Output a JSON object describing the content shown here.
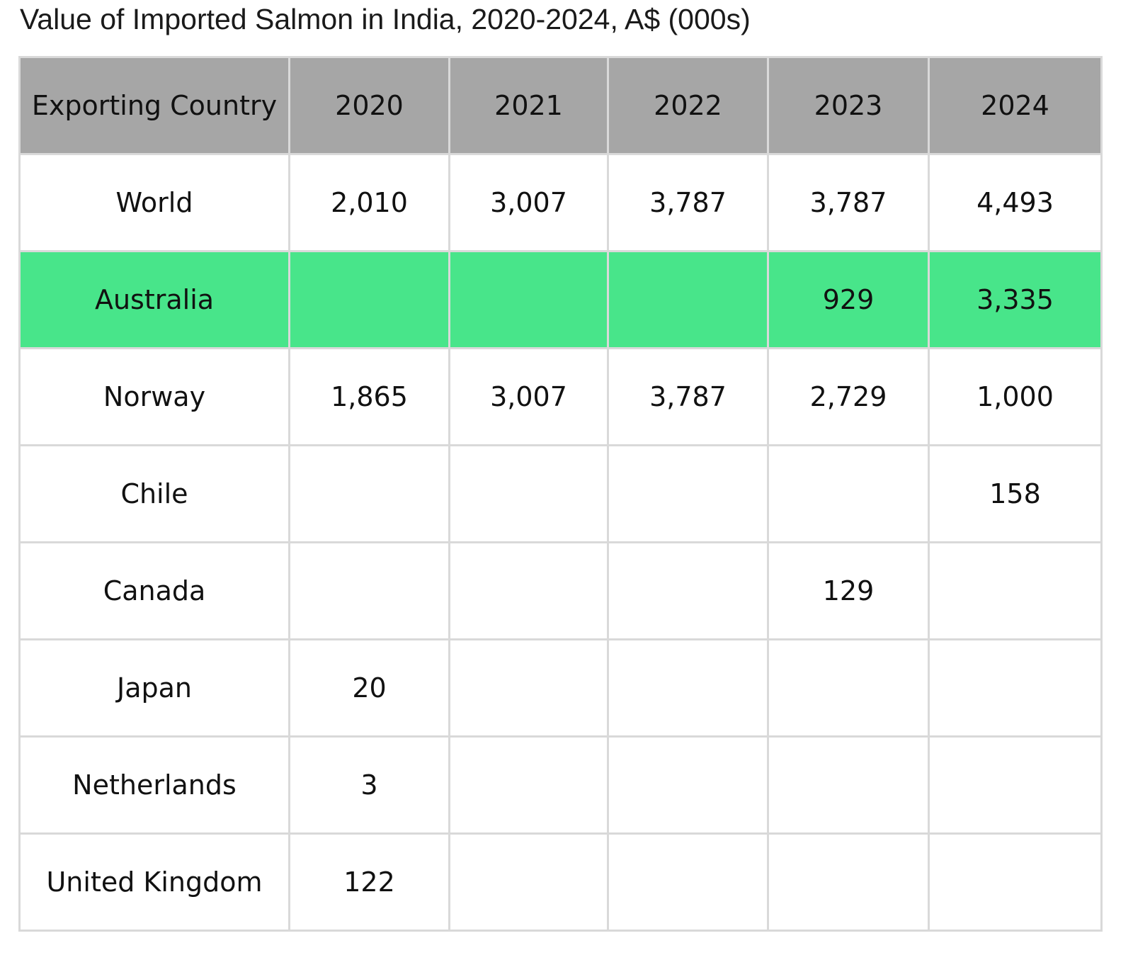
{
  "title": "Value of Imported Salmon in India, 2020-2024, A$ (000s)",
  "colors": {
    "header_bg": "#a6a6a6",
    "highlight_bg": "#48e58a",
    "border": "#d9d9d9"
  },
  "chart_data": {
    "type": "table",
    "title": "Value of Imported Salmon in India, 2020-2024, A$ (000s)",
    "columns": [
      "Exporting Country",
      "2020",
      "2021",
      "2022",
      "2023",
      "2024"
    ],
    "rows": [
      {
        "country": "World",
        "values": [
          "2,010",
          "3,007",
          "3,787",
          "3,787",
          "4,493"
        ],
        "highlight": false
      },
      {
        "country": "Australia",
        "values": [
          "",
          "",
          "",
          "929",
          "3,335"
        ],
        "highlight": true
      },
      {
        "country": "Norway",
        "values": [
          "1,865",
          "3,007",
          "3,787",
          "2,729",
          "1,000"
        ],
        "highlight": false
      },
      {
        "country": "Chile",
        "values": [
          "",
          "",
          "",
          "",
          "158"
        ],
        "highlight": false
      },
      {
        "country": "Canada",
        "values": [
          "",
          "",
          "",
          "129",
          ""
        ],
        "highlight": false
      },
      {
        "country": "Japan",
        "values": [
          "20",
          "",
          "",
          "",
          ""
        ],
        "highlight": false
      },
      {
        "country": "Netherlands",
        "values": [
          "3",
          "",
          "",
          "",
          ""
        ],
        "highlight": false
      },
      {
        "country": "United Kingdom",
        "values": [
          "122",
          "",
          "",
          "",
          ""
        ],
        "highlight": false
      }
    ]
  }
}
